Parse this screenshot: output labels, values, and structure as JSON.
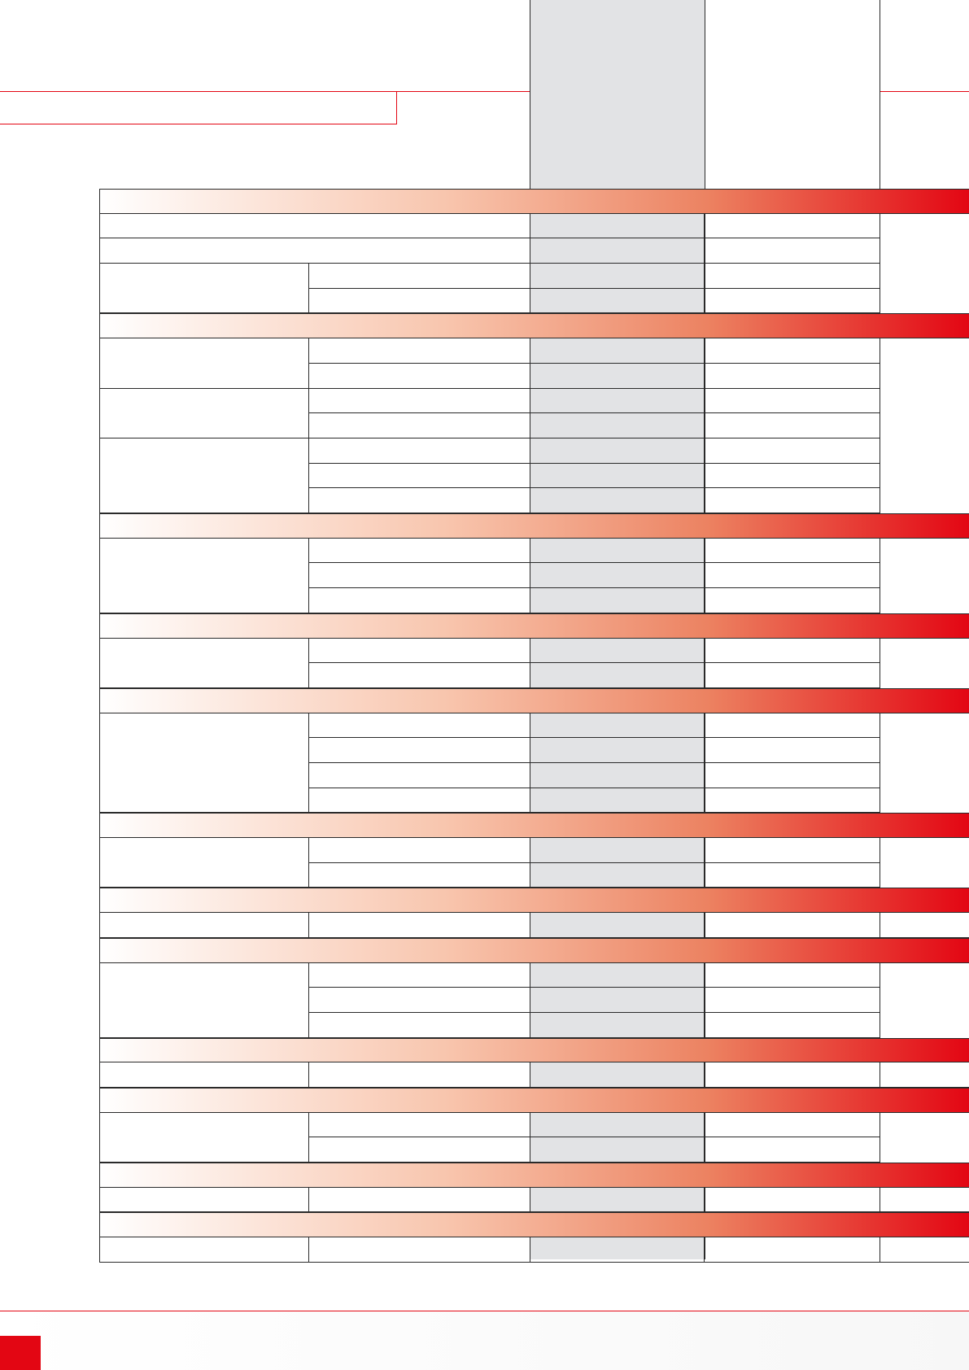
{
  "document": {
    "accent_color": "#e30613",
    "table": {
      "sections": [
        {
          "id": "s1",
          "title": "",
          "rows": [
            {
              "label": "",
              "sub": "",
              "value_a": "",
              "value_b": "",
              "span": true
            },
            {
              "label": "",
              "sub": "",
              "value_a": "",
              "value_b": "",
              "span": true
            },
            {
              "label": "",
              "sub": "",
              "value_a": "",
              "value_b": "",
              "group": 1
            },
            {
              "label": "",
              "sub": "",
              "value_a": "",
              "value_b": "",
              "group": 1
            }
          ]
        },
        {
          "id": "s2",
          "title": "",
          "rows": [
            {
              "label": "",
              "sub": "",
              "value_a": "",
              "value_b": "",
              "group": 1
            },
            {
              "label": "",
              "sub": "",
              "value_a": "",
              "value_b": "",
              "group": 1
            },
            {
              "label": "",
              "sub": "",
              "value_a": "",
              "value_b": "",
              "group": 2
            },
            {
              "label": "",
              "sub": "",
              "value_a": "",
              "value_b": "",
              "group": 2
            },
            {
              "label": "",
              "sub": "",
              "value_a": "",
              "value_b": "",
              "group": 3
            },
            {
              "label": "",
              "sub": "",
              "value_a": "",
              "value_b": "",
              "group": 3
            },
            {
              "label": "",
              "sub": "",
              "value_a": "",
              "value_b": "",
              "group": 3
            }
          ]
        },
        {
          "id": "s3",
          "title": "",
          "rows": [
            {
              "label": "",
              "sub": "",
              "value_a": "",
              "value_b": "",
              "group": 1
            },
            {
              "label": "",
              "sub": "",
              "value_a": "",
              "value_b": "",
              "group": 1
            },
            {
              "label": "",
              "sub": "",
              "value_a": "",
              "value_b": "",
              "group": 1
            }
          ]
        },
        {
          "id": "s4",
          "title": "",
          "rows": [
            {
              "label": "",
              "sub": "",
              "value_a": "",
              "value_b": "",
              "group": 1
            },
            {
              "label": "",
              "sub": "",
              "value_a": "",
              "value_b": "",
              "group": 1
            }
          ]
        },
        {
          "id": "s5",
          "title": "",
          "rows": [
            {
              "label": "",
              "sub": "",
              "value_a": "",
              "value_b": "",
              "group": 1
            },
            {
              "label": "",
              "sub": "",
              "value_a": "",
              "value_b": "",
              "group": 1
            },
            {
              "label": "",
              "sub": "",
              "value_a": "",
              "value_b": "",
              "group": 1
            },
            {
              "label": "",
              "sub": "",
              "value_a": "",
              "value_b": "",
              "group": 1
            }
          ]
        },
        {
          "id": "s6",
          "title": "",
          "rows": [
            {
              "label": "",
              "sub": "",
              "value_a": "",
              "value_b": "",
              "group": 1
            },
            {
              "label": "",
              "sub": "",
              "value_a": "",
              "value_b": "",
              "group": 1
            }
          ]
        },
        {
          "id": "s7",
          "title": "",
          "rows": [
            {
              "label": "",
              "sub": "",
              "value_a": "",
              "value_b": "",
              "single": true
            }
          ]
        },
        {
          "id": "s8",
          "title": "",
          "rows": [
            {
              "label": "",
              "sub": "",
              "value_a": "",
              "value_b": "",
              "group": 1
            },
            {
              "label": "",
              "sub": "",
              "value_a": "",
              "value_b": "",
              "group": 1
            },
            {
              "label": "",
              "sub": "",
              "value_a": "",
              "value_b": "",
              "group": 1
            }
          ]
        },
        {
          "id": "s9",
          "title": "",
          "rows": [
            {
              "label": "",
              "sub": "",
              "value_a": "",
              "value_b": "",
              "single": true
            }
          ]
        },
        {
          "id": "s10",
          "title": "",
          "rows": [
            {
              "label": "",
              "sub": "",
              "value_a": "",
              "value_b": "",
              "group": 1
            },
            {
              "label": "",
              "sub": "",
              "value_a": "",
              "value_b": "",
              "group": 1
            }
          ]
        },
        {
          "id": "s11",
          "title": "",
          "rows": [
            {
              "label": "",
              "sub": "",
              "value_a": "",
              "value_b": "",
              "single": true
            }
          ]
        },
        {
          "id": "s12",
          "title": "",
          "rows": [
            {
              "label": "",
              "sub": "",
              "value_a": "",
              "value_b": "",
              "single": true
            }
          ]
        }
      ]
    }
  }
}
